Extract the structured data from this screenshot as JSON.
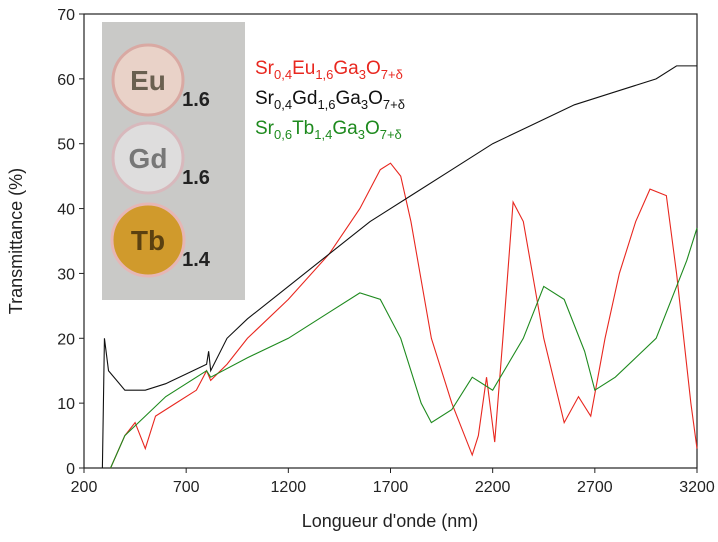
{
  "chart_data": {
    "type": "line",
    "x_label": "Longueur d'onde (nm)",
    "y_label": "Transmittance (%)",
    "xlim": [
      200,
      3200
    ],
    "ylim": [
      0,
      70
    ],
    "xticks": [
      200,
      700,
      1200,
      1700,
      2200,
      2700,
      3200
    ],
    "yticks": [
      0,
      10,
      20,
      30,
      40,
      50,
      60,
      70
    ],
    "grid": false,
    "legend": "top",
    "inset_labels": [
      "Eu",
      "1.6",
      "Gd",
      "1.6",
      "Tb",
      "1.4"
    ],
    "series": [
      {
        "name": "Sr0,4Eu1,6Ga3O7+δ",
        "color": "#e8271f",
        "x": [
          330,
          400,
          450,
          500,
          550,
          650,
          750,
          800,
          820,
          900,
          1000,
          1200,
          1400,
          1550,
          1650,
          1700,
          1750,
          1800,
          1900,
          2000,
          2100,
          2130,
          2170,
          2210,
          2250,
          2300,
          2350,
          2450,
          2550,
          2620,
          2680,
          2750,
          2820,
          2900,
          2970,
          3050,
          3100,
          3170,
          3200
        ],
        "values": [
          0,
          5,
          7,
          3,
          8,
          10,
          12,
          15,
          13.5,
          16,
          20,
          26,
          33,
          40,
          46,
          47,
          45,
          38,
          20,
          10,
          2,
          5,
          14,
          4,
          20,
          41,
          38,
          20,
          7,
          11,
          8,
          20,
          30,
          38,
          43,
          42,
          30,
          10,
          3
        ]
      },
      {
        "name": "Sr0,4Gd1,6Ga3O7+δ",
        "color": "#111111",
        "x": [
          290,
          300,
          320,
          400,
          500,
          600,
          700,
          800,
          810,
          820,
          900,
          1000,
          1200,
          1400,
          1600,
          1800,
          2000,
          2200,
          2400,
          2600,
          2800,
          3000,
          3100,
          3200
        ],
        "values": [
          0,
          20,
          15,
          12,
          12,
          13,
          14.5,
          16,
          18,
          15,
          20,
          23,
          28,
          33,
          38,
          42,
          46,
          50,
          53,
          56,
          58,
          60,
          62,
          62
        ]
      },
      {
        "name": "Sr0,6Tb1,4Ga3O7+δ",
        "color": "#1e8a1e",
        "x": [
          330,
          400,
          500,
          600,
          700,
          800,
          820,
          1000,
          1200,
          1400,
          1550,
          1650,
          1750,
          1850,
          1900,
          2000,
          2100,
          2200,
          2350,
          2450,
          2550,
          2650,
          2700,
          2800,
          2900,
          3000,
          3100,
          3150,
          3200
        ],
        "values": [
          0,
          5,
          8,
          11,
          13,
          15,
          14,
          17,
          20,
          24,
          27,
          26,
          20,
          10,
          7,
          9,
          14,
          12,
          20,
          28,
          26,
          18,
          12,
          14,
          17,
          20,
          28,
          32,
          37
        ]
      }
    ]
  }
}
